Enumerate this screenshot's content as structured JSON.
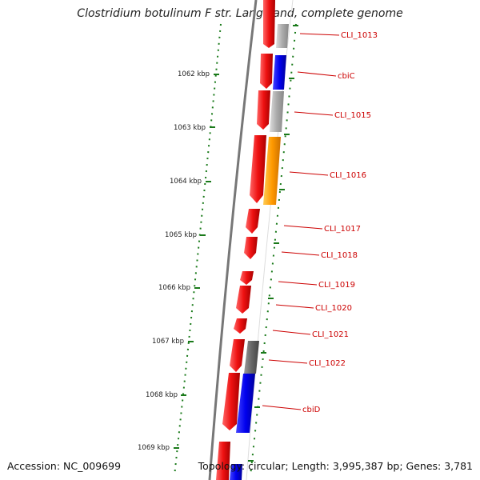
{
  "title": "Clostridium botulinum F str. Langeland, complete genome",
  "accession": "Accession: NC_009699",
  "topology": "Topology: circular; Length: 3,995,387 bp; Genes: 3,781",
  "colors": {
    "forward_strand": "#ee1111",
    "blue_gene": "#0000ee",
    "grey_gene": "#aaaaaa",
    "dark_grey_gene": "#666666",
    "orange_gene": "#ff9900",
    "backbone": "#777777",
    "tick": "#1a7a1a",
    "label": "#cc0000"
  },
  "scale_ticks": [
    {
      "label": "1062 kbp"
    },
    {
      "label": "1063 kbp"
    },
    {
      "label": "1064 kbp"
    },
    {
      "label": "1065 kbp"
    },
    {
      "label": "1066 kbp"
    },
    {
      "label": "1067 kbp"
    },
    {
      "label": "1068 kbp"
    },
    {
      "label": "1069 kbp"
    }
  ],
  "gene_labels": [
    {
      "name": "CLI_1013"
    },
    {
      "name": "cbiC"
    },
    {
      "name": "CLI_1015"
    },
    {
      "name": "CLI_1016"
    },
    {
      "name": "CLI_1017"
    },
    {
      "name": "CLI_1018"
    },
    {
      "name": "CLI_1019"
    },
    {
      "name": "CLI_1020"
    },
    {
      "name": "CLI_1021"
    },
    {
      "name": "CLI_1022"
    },
    {
      "name": "cbiD"
    }
  ]
}
